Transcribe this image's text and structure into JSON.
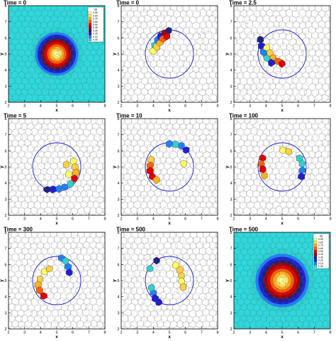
{
  "figure": {
    "rows": 3,
    "cols": 3
  },
  "chart_data": [
    {
      "type": "heatmap",
      "title": "Time = 0",
      "xlabel": "x",
      "ylabel": "y",
      "xlim": [
        2,
        8
      ],
      "ylim": [
        2,
        8
      ],
      "xticks": [
        2,
        3,
        4,
        5,
        6,
        7,
        8
      ],
      "yticks": [
        2,
        3,
        4,
        5,
        6,
        7,
        8
      ],
      "center": [
        5,
        5
      ],
      "radius": 1.5,
      "legend": {
        "title": "f(t)",
        "position": "top-right",
        "entries": [
          "0.95",
          "0.85",
          "0.75",
          "0.65",
          "0.55",
          "0.45",
          "0.35",
          "0.25",
          "0.15",
          "0.05"
        ],
        "colors": [
          "#ffffaa",
          "#ffe060",
          "#ffb020",
          "#ff6000",
          "#e00000",
          "#a00000",
          "#202080",
          "#2020d0",
          "#2080ff",
          "#30d0d0"
        ]
      }
    },
    {
      "type": "scatter",
      "title": "Time = 0",
      "xlabel": "x",
      "ylabel": "y",
      "xlim": [
        2,
        8
      ],
      "ylim": [
        2,
        8
      ],
      "xticks": [
        2,
        3,
        4,
        5,
        6,
        7,
        8
      ],
      "yticks": [
        2,
        3,
        4,
        5,
        6,
        7,
        8
      ],
      "circle": {
        "center": [
          5,
          5
        ],
        "radius": 1.5
      },
      "cells": [
        {
          "x": 4.1,
          "y": 5.55,
          "c": "#30d0d0"
        },
        {
          "x": 4.25,
          "y": 5.85,
          "c": "#2080ff"
        },
        {
          "x": 4.45,
          "y": 6.1,
          "c": "#2020d0"
        },
        {
          "x": 4.7,
          "y": 6.3,
          "c": "#a00000"
        },
        {
          "x": 4.95,
          "y": 6.45,
          "c": "#202080"
        },
        {
          "x": 4.0,
          "y": 5.2,
          "c": "#ffff60"
        },
        {
          "x": 4.2,
          "y": 5.45,
          "c": "#ffd040"
        },
        {
          "x": 4.4,
          "y": 5.7,
          "c": "#ffb020"
        },
        {
          "x": 4.6,
          "y": 5.95,
          "c": "#ff6000"
        },
        {
          "x": 4.85,
          "y": 6.1,
          "c": "#e00000"
        }
      ]
    },
    {
      "type": "scatter",
      "title": "Time = 2.5",
      "xlabel": "x",
      "ylabel": "y",
      "xlim": [
        2,
        8
      ],
      "ylim": [
        2,
        8
      ],
      "xticks": [
        2,
        3,
        4,
        5,
        6,
        7,
        8
      ],
      "yticks": [
        2,
        3,
        4,
        5,
        6,
        7,
        8
      ],
      "circle": {
        "center": [
          5,
          5
        ],
        "radius": 1.5
      },
      "cells": [
        {
          "x": 3.65,
          "y": 5.9,
          "c": "#202080"
        },
        {
          "x": 3.7,
          "y": 5.5,
          "c": "#2020d0"
        },
        {
          "x": 3.85,
          "y": 5.1,
          "c": "#2080ff"
        },
        {
          "x": 4.05,
          "y": 4.75,
          "c": "#30d0d0"
        },
        {
          "x": 4.05,
          "y": 5.4,
          "c": "#ffff60"
        },
        {
          "x": 4.25,
          "y": 5.05,
          "c": "#ffd040"
        },
        {
          "x": 4.45,
          "y": 4.75,
          "c": "#ffb020"
        },
        {
          "x": 4.75,
          "y": 4.55,
          "c": "#ff6000"
        },
        {
          "x": 5.0,
          "y": 4.4,
          "c": "#e00000"
        },
        {
          "x": 4.35,
          "y": 4.45,
          "c": "#2020d0"
        }
      ]
    },
    {
      "type": "scatter",
      "title": "Time = 5",
      "xlabel": "x",
      "ylabel": "y",
      "xlim": [
        2,
        8
      ],
      "ylim": [
        2,
        8
      ],
      "xticks": [
        2,
        3,
        4,
        5,
        6,
        7,
        8
      ],
      "yticks": [
        2,
        3,
        4,
        5,
        6,
        7,
        8
      ],
      "circle": {
        "center": [
          5,
          5
        ],
        "radius": 1.5
      },
      "cells": [
        {
          "x": 6.05,
          "y": 5.35,
          "c": "#ffff60"
        },
        {
          "x": 6.15,
          "y": 5.0,
          "c": "#ffd040"
        },
        {
          "x": 6.2,
          "y": 4.65,
          "c": "#ffb020"
        },
        {
          "x": 6.1,
          "y": 4.3,
          "c": "#e00000"
        },
        {
          "x": 5.85,
          "y": 3.95,
          "c": "#30d0d0"
        },
        {
          "x": 5.5,
          "y": 3.75,
          "c": "#2080ff"
        },
        {
          "x": 5.15,
          "y": 3.65,
          "c": "#2080ff"
        },
        {
          "x": 4.75,
          "y": 3.6,
          "c": "#2020d0"
        },
        {
          "x": 4.4,
          "y": 3.6,
          "c": "#202080"
        },
        {
          "x": 5.6,
          "y": 5.15,
          "c": "#ffd040"
        },
        {
          "x": 5.75,
          "y": 4.55,
          "c": "#ffff60"
        }
      ]
    },
    {
      "type": "scatter",
      "title": "Time = 10",
      "xlabel": "x",
      "ylabel": "y",
      "xlim": [
        2,
        8
      ],
      "ylim": [
        2,
        8
      ],
      "xticks": [
        2,
        3,
        4,
        5,
        6,
        7,
        8
      ],
      "yticks": [
        2,
        3,
        4,
        5,
        6,
        7,
        8
      ],
      "circle": {
        "center": [
          5,
          5
        ],
        "radius": 1.5
      },
      "cells": [
        {
          "x": 5.0,
          "y": 6.45,
          "c": "#2080ff"
        },
        {
          "x": 5.4,
          "y": 6.4,
          "c": "#30d0d0"
        },
        {
          "x": 5.75,
          "y": 6.3,
          "c": "#2080ff"
        },
        {
          "x": 6.05,
          "y": 6.05,
          "c": "#2020d0"
        },
        {
          "x": 3.85,
          "y": 5.45,
          "c": "#ffd040"
        },
        {
          "x": 3.8,
          "y": 5.1,
          "c": "#ff6000"
        },
        {
          "x": 3.8,
          "y": 4.75,
          "c": "#e00000"
        },
        {
          "x": 3.95,
          "y": 4.4,
          "c": "#e00000"
        },
        {
          "x": 4.2,
          "y": 4.2,
          "c": "#ffb020"
        },
        {
          "x": 5.9,
          "y": 5.2,
          "c": "#ffff60"
        }
      ]
    },
    {
      "type": "scatter",
      "title": "Time = 100",
      "xlabel": "x",
      "ylabel": "y",
      "xlim": [
        2,
        8
      ],
      "ylim": [
        2,
        8
      ],
      "xticks": [
        2,
        3,
        4,
        5,
        6,
        7,
        8
      ],
      "yticks": [
        2,
        3,
        4,
        5,
        6,
        7,
        8
      ],
      "circle": {
        "center": [
          5,
          5
        ],
        "radius": 1.5
      },
      "cells": [
        {
          "x": 5.05,
          "y": 6.05,
          "c": "#ffff60"
        },
        {
          "x": 5.4,
          "y": 5.95,
          "c": "#ffd040"
        },
        {
          "x": 6.1,
          "y": 5.55,
          "c": "#30d0d0"
        },
        {
          "x": 6.25,
          "y": 5.2,
          "c": "#30d0d0"
        },
        {
          "x": 6.25,
          "y": 4.8,
          "c": "#2080ff"
        },
        {
          "x": 6.2,
          "y": 4.4,
          "c": "#2020d0"
        },
        {
          "x": 3.8,
          "y": 5.55,
          "c": "#e00000"
        },
        {
          "x": 3.7,
          "y": 5.2,
          "c": "#ff6000"
        },
        {
          "x": 3.8,
          "y": 4.85,
          "c": "#e00000"
        },
        {
          "x": 3.9,
          "y": 4.45,
          "c": "#ffb020"
        }
      ]
    },
    {
      "type": "scatter",
      "title": "Time = 300",
      "xlabel": "x",
      "ylabel": "y",
      "xlim": [
        2,
        8
      ],
      "ylim": [
        2,
        8
      ],
      "xticks": [
        2,
        3,
        4,
        5,
        6,
        7,
        8
      ],
      "yticks": [
        2,
        3,
        4,
        5,
        6,
        7,
        8
      ],
      "circle": {
        "center": [
          5,
          5
        ],
        "radius": 1.5
      },
      "cells": [
        {
          "x": 5.3,
          "y": 6.4,
          "c": "#2080ff"
        },
        {
          "x": 5.55,
          "y": 6.2,
          "c": "#30d0d0"
        },
        {
          "x": 5.7,
          "y": 5.85,
          "c": "#2080ff"
        },
        {
          "x": 5.8,
          "y": 5.5,
          "c": "#2020d0"
        },
        {
          "x": 3.95,
          "y": 5.1,
          "c": "#ffd040"
        },
        {
          "x": 3.85,
          "y": 4.75,
          "c": "#ffb020"
        },
        {
          "x": 3.95,
          "y": 4.4,
          "c": "#ff6000"
        },
        {
          "x": 4.2,
          "y": 4.05,
          "c": "#e00000"
        },
        {
          "x": 4.25,
          "y": 5.55,
          "c": "#ffff60"
        },
        {
          "x": 4.55,
          "y": 5.75,
          "c": "#ffd040"
        }
      ]
    },
    {
      "type": "scatter",
      "title": "Time = 500",
      "xlabel": "x",
      "ylabel": "y",
      "xlim": [
        2,
        8
      ],
      "ylim": [
        2,
        8
      ],
      "xticks": [
        2,
        3,
        4,
        5,
        6,
        7,
        8
      ],
      "yticks": [
        2,
        3,
        4,
        5,
        6,
        7,
        8
      ],
      "circle": {
        "center": [
          5,
          5
        ],
        "radius": 1.5
      },
      "cells": [
        {
          "x": 4.2,
          "y": 6.25,
          "c": "#202080"
        },
        {
          "x": 3.8,
          "y": 5.75,
          "c": "#30d0d0"
        },
        {
          "x": 5.4,
          "y": 5.95,
          "c": "#ffff60"
        },
        {
          "x": 5.65,
          "y": 5.65,
          "c": "#ffd040"
        },
        {
          "x": 5.75,
          "y": 5.3,
          "c": "#ffd040"
        },
        {
          "x": 5.75,
          "y": 4.95,
          "c": "#ffff60"
        },
        {
          "x": 5.85,
          "y": 4.6,
          "c": "#ffd040"
        },
        {
          "x": 4.0,
          "y": 4.25,
          "c": "#2080ff"
        },
        {
          "x": 4.1,
          "y": 3.9,
          "c": "#2020d0"
        },
        {
          "x": 4.35,
          "y": 3.65,
          "c": "#2020d0"
        },
        {
          "x": 3.9,
          "y": 4.55,
          "c": "#30d0d0"
        }
      ]
    },
    {
      "type": "heatmap",
      "title": "Time = 500",
      "xlabel": "x",
      "ylabel": "y",
      "xlim": [
        2,
        8
      ],
      "ylim": [
        2,
        8
      ],
      "xticks": [
        2,
        3,
        4,
        5,
        6,
        7,
        8
      ],
      "yticks": [
        2,
        3,
        4,
        5,
        6,
        7,
        8
      ],
      "center": [
        5,
        5
      ],
      "radius": 1.85,
      "legend": {
        "title": "f(t)",
        "position": "top-right",
        "entries": [
          "0.95",
          "0.85",
          "0.75",
          "0.65",
          "0.55",
          "0.45",
          "0.35",
          "0.25",
          "0.15",
          "0.05"
        ],
        "colors": [
          "#ffffaa",
          "#ffe060",
          "#ffb020",
          "#ff6000",
          "#e00000",
          "#a00000",
          "#202080",
          "#2020d0",
          "#2080ff",
          "#30d0d0"
        ]
      }
    }
  ]
}
